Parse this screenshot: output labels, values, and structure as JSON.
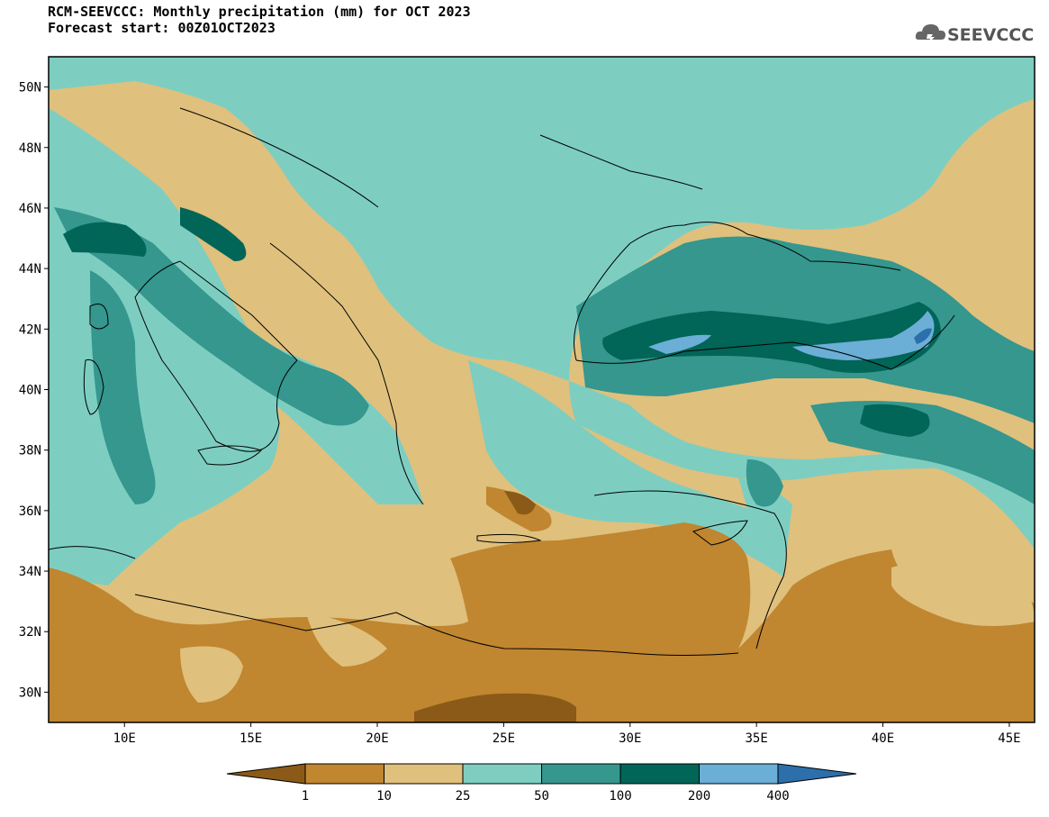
{
  "header": {
    "title_line1": "RCM-SEEVCCC: Monthly precipitation (mm) for OCT 2023",
    "title_line2": "Forecast start: 00Z01OCT2023"
  },
  "logo": {
    "text": "SEEVCCC",
    "icon": "cloud-icon"
  },
  "map": {
    "lat_labels": [
      "50N",
      "48N",
      "46N",
      "44N",
      "42N",
      "40N",
      "38N",
      "36N",
      "34N",
      "32N",
      "30N"
    ],
    "lon_labels": [
      "10E",
      "15E",
      "20E",
      "25E",
      "30E",
      "35E",
      "40E",
      "45E"
    ],
    "lat_range": [
      29,
      51
    ],
    "lon_range": [
      7,
      46
    ]
  },
  "colorbar": {
    "labels": [
      "1",
      "10",
      "25",
      "50",
      "100",
      "200",
      "400"
    ],
    "colors": [
      "#8b5a18",
      "#c08630",
      "#dfc07d",
      "#7dcec1",
      "#35978e",
      "#016557",
      "#6baed6",
      "#2c6fab"
    ]
  }
}
